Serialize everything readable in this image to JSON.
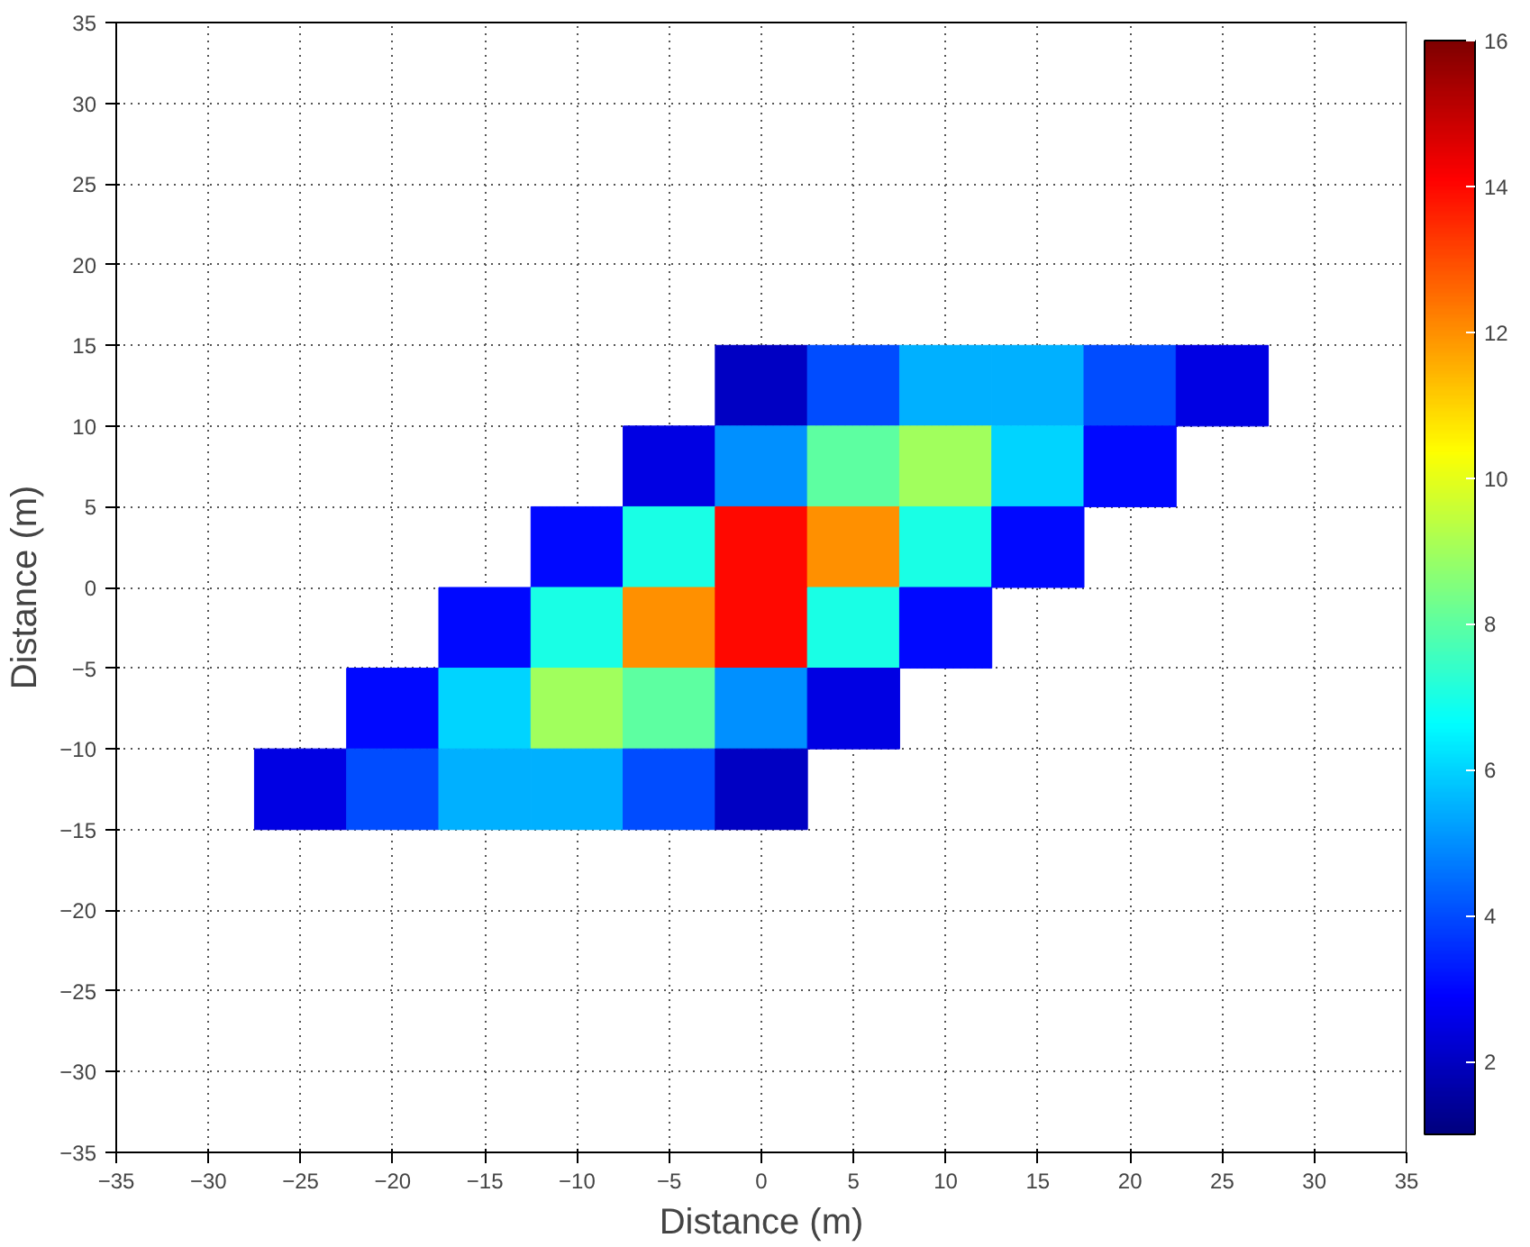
{
  "chart_data": {
    "type": "heatmap",
    "xlabel": "Distance (m)",
    "ylabel": "Distance (m)",
    "x": [
      -25,
      -20,
      -15,
      -10,
      -5,
      0,
      5,
      10,
      15,
      20,
      25
    ],
    "y": [
      12.5,
      7.5,
      2.5,
      -2.5,
      -7.5,
      -12.5
    ],
    "cells": [
      [
        null,
        null,
        null,
        null,
        null,
        2,
        4,
        5.5,
        5.5,
        4,
        2.5
      ],
      [
        null,
        null,
        null,
        null,
        2.5,
        5,
        8,
        9,
        6,
        3,
        null
      ],
      [
        null,
        null,
        null,
        3,
        7,
        14,
        12,
        7,
        3,
        null,
        null
      ],
      [
        null,
        null,
        3,
        7,
        12,
        14,
        7,
        3,
        null,
        null,
        null
      ],
      [
        null,
        3,
        6,
        9,
        8,
        5,
        2.5,
        null,
        null,
        null,
        null
      ],
      [
        2.5,
        4,
        5.5,
        5.5,
        4,
        2,
        null,
        null,
        null,
        null,
        null
      ]
    ],
    "clim": [
      1,
      16
    ],
    "cticks": [
      2,
      4,
      6,
      8,
      10,
      12,
      14,
      16
    ],
    "xlim": [
      -35,
      35
    ],
    "ylim": [
      -35,
      35
    ],
    "xticks": [
      -35,
      -30,
      -25,
      -20,
      -15,
      -10,
      -5,
      0,
      5,
      10,
      15,
      20,
      25,
      30,
      35
    ],
    "yticks": [
      -35,
      -30,
      -25,
      -20,
      -15,
      -10,
      -5,
      0,
      5,
      10,
      15,
      20,
      25,
      30,
      35
    ],
    "grid": true
  }
}
